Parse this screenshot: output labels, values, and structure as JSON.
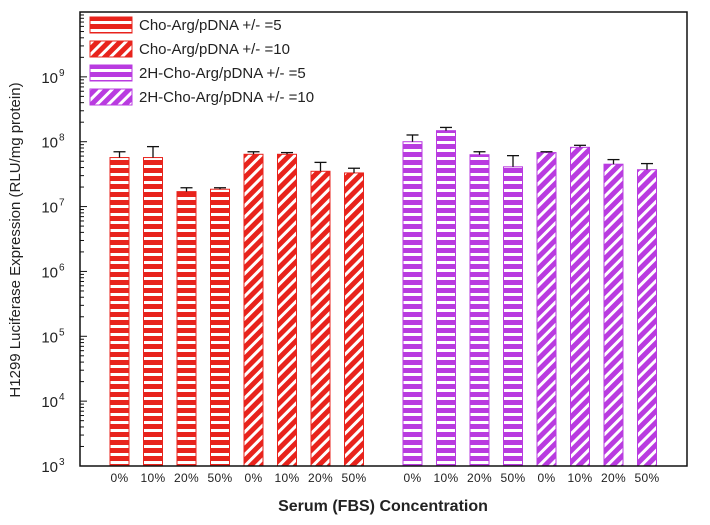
{
  "chart_data": {
    "type": "bar",
    "scale": "log",
    "xlabel": "Serum (FBS) Concentration",
    "ylabel": "H1299 Luciferase Expression (RLU/mg protein)",
    "ylim": [
      1000,
      10000000000
    ],
    "ytick_base": "10",
    "yticks": [
      3,
      4,
      5,
      6,
      7,
      8,
      9
    ],
    "legend_position": "top-left",
    "series": [
      {
        "name": "Cho-Arg/pDNA +/- =5",
        "color": "#e8231c",
        "pattern": "horizontal",
        "categories": [
          "0%",
          "10%",
          "20%",
          "50%"
        ],
        "values": [
          57000000,
          57000000,
          17000000,
          18500000
        ],
        "errors": [
          13000000,
          27000000,
          2500000,
          1000000
        ]
      },
      {
        "name": "Cho-Arg/pDNA +/- =10",
        "color": "#e8231c",
        "pattern": "diagonal",
        "categories": [
          "0%",
          "10%",
          "20%",
          "50%"
        ],
        "values": [
          64000000,
          64000000,
          35000000,
          33000000
        ],
        "errors": [
          6000000,
          4000000,
          13000000,
          6000000
        ]
      },
      {
        "name": "2H-Cho-Arg/pDNA +/- =5",
        "color": "#b93be0",
        "pattern": "horizontal",
        "categories": [
          "0%",
          "10%",
          "20%",
          "50%"
        ],
        "values": [
          100000000,
          148000000,
          63000000,
          41000000
        ],
        "errors": [
          27000000,
          18000000,
          7000000,
          20000000
        ]
      },
      {
        "name": "2H-Cho-Arg/pDNA +/- =10",
        "color": "#b93be0",
        "pattern": "diagonal",
        "categories": [
          "0%",
          "10%",
          "20%",
          "50%"
        ],
        "values": [
          68000000,
          82000000,
          45000000,
          37000000
        ],
        "errors": [
          2000000,
          6000000,
          8000000,
          9000000
        ]
      }
    ]
  }
}
